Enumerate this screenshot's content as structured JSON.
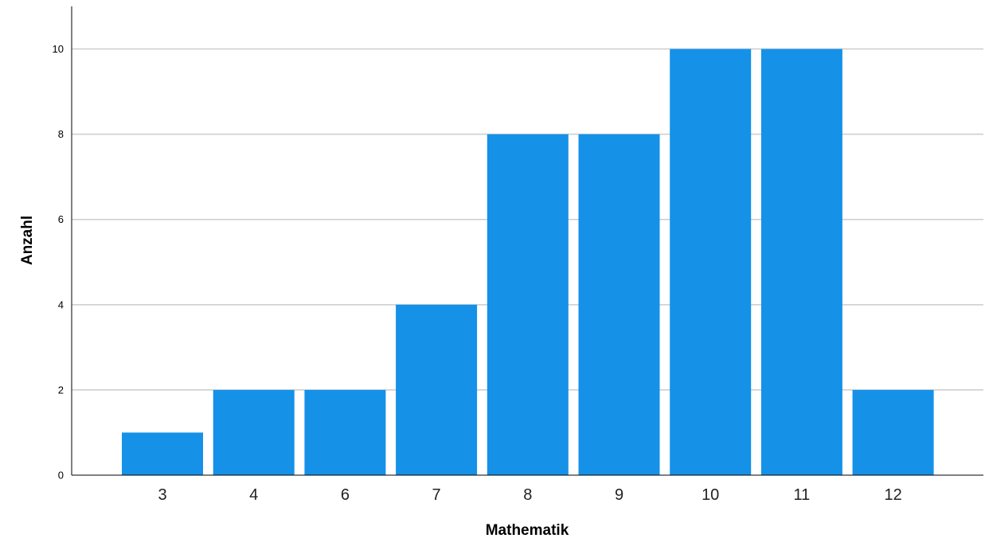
{
  "chart_data": {
    "type": "bar",
    "title": "",
    "xlabel": "Mathematik",
    "ylabel": "Anzahl",
    "categories": [
      "3",
      "4",
      "6",
      "7",
      "8",
      "9",
      "10",
      "11",
      "12"
    ],
    "values": [
      1,
      2,
      2,
      4,
      8,
      8,
      10,
      10,
      2
    ],
    "ylim": [
      0,
      11
    ],
    "yticks": [
      "0",
      "2",
      "4",
      "6",
      "8",
      "10"
    ],
    "grid": true,
    "bar_color": "#1591e8",
    "grid_color": "#cccccc"
  }
}
